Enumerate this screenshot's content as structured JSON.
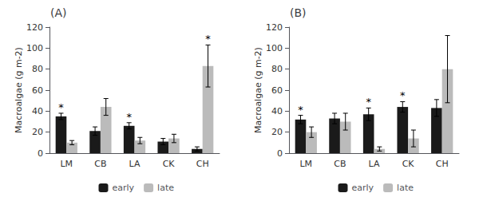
{
  "chart_data": [
    {
      "type": "bar",
      "title": "(A)",
      "categories": [
        "LM",
        "CB",
        "LA",
        "CK",
        "CH"
      ],
      "series": [
        {
          "name": "early",
          "color": "#1a1a1a",
          "values": [
            35,
            21,
            26,
            11,
            4
          ],
          "errors": [
            3,
            4,
            3,
            3,
            2
          ],
          "annotations": [
            "*",
            null,
            "*",
            null,
            null
          ]
        },
        {
          "name": "late",
          "color": "#bbbbbb",
          "values": [
            10,
            44,
            12,
            14,
            83
          ],
          "errors": [
            2,
            8,
            3,
            4,
            20
          ],
          "annotations": [
            null,
            null,
            null,
            null,
            "*"
          ]
        }
      ],
      "ylabel": "Macroalgae (g m-2)",
      "ylim": [
        0,
        120
      ],
      "yticks": [
        0,
        20,
        40,
        60,
        80,
        100,
        120
      ],
      "grid": false,
      "legend": "bottom"
    },
    {
      "type": "bar",
      "title": "(B)",
      "categories": [
        "LM",
        "CB",
        "LA",
        "CK",
        "CH"
      ],
      "series": [
        {
          "name": "early",
          "color": "#1a1a1a",
          "values": [
            32,
            33,
            37,
            44,
            43
          ],
          "errors": [
            4,
            5,
            6,
            5,
            8
          ],
          "annotations": [
            "*",
            null,
            "*",
            "*",
            null
          ]
        },
        {
          "name": "late",
          "color": "#bbbbbb",
          "values": [
            20,
            30,
            4,
            14,
            80
          ],
          "errors": [
            5,
            8,
            2,
            8,
            32
          ],
          "annotations": [
            null,
            null,
            null,
            null,
            null
          ]
        }
      ],
      "ylabel": "Macroalgae (g m-2)",
      "ylim": [
        0,
        120
      ],
      "yticks": [
        0,
        20,
        40,
        60,
        80,
        100,
        120
      ],
      "grid": false,
      "legend": "bottom"
    }
  ]
}
